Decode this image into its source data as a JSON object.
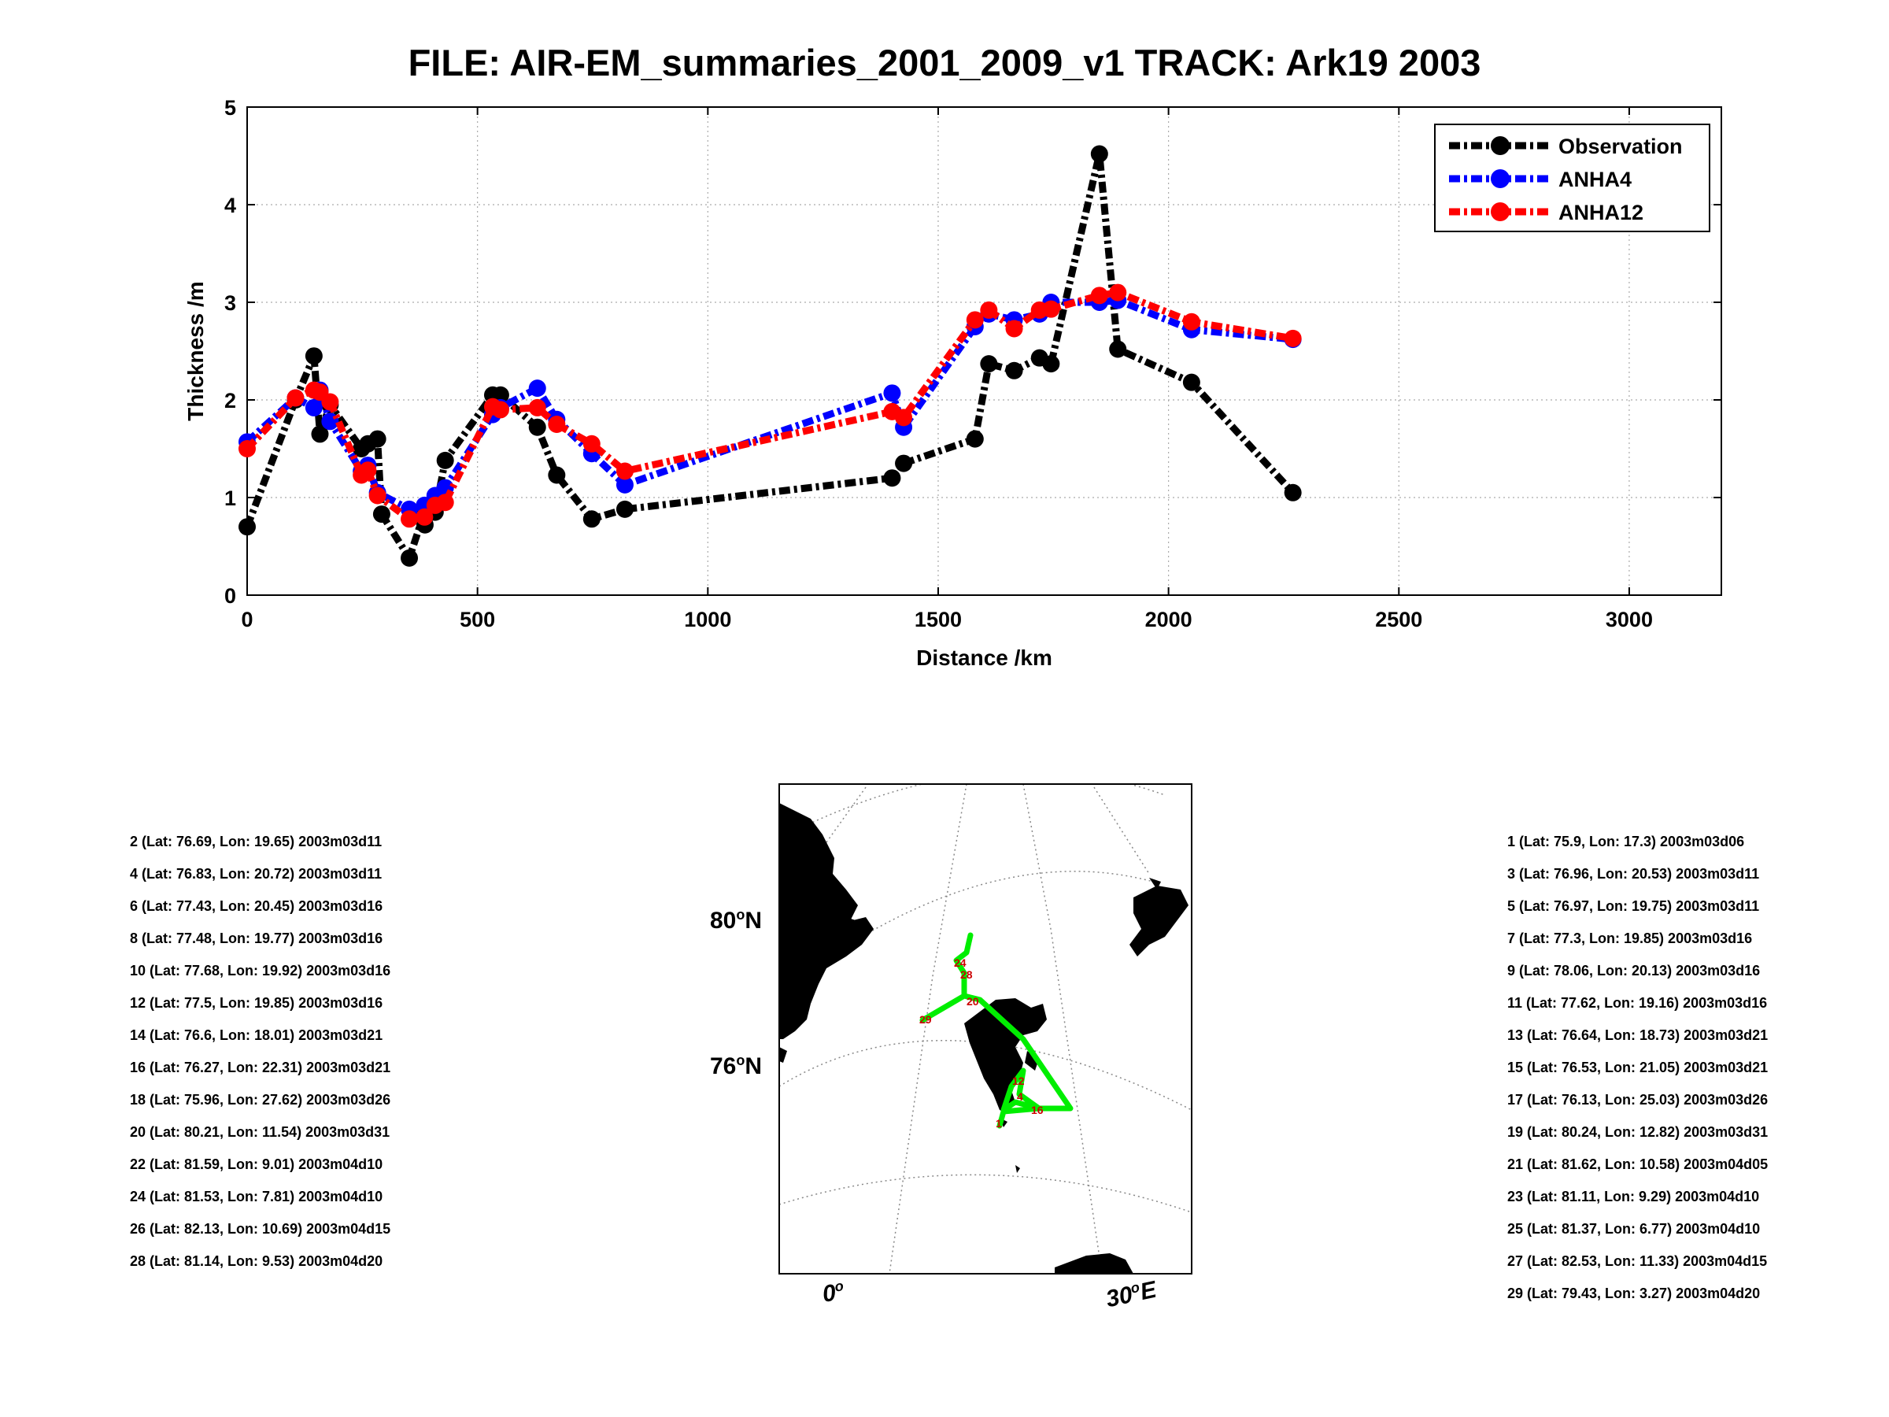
{
  "title": "FILE: AIR-EM_summaries_2001_2009_v1 TRACK: Ark19 2003",
  "chart_data": {
    "type": "line",
    "xlabel": "Distance /km",
    "ylabel": "Thickness /m",
    "xlim": [
      0,
      3200
    ],
    "ylim": [
      0,
      5
    ],
    "xticks": [
      "0",
      "500",
      "1000",
      "1500",
      "2000",
      "2500",
      "3000"
    ],
    "yticks": [
      "0",
      "1",
      "2",
      "3",
      "4",
      "5"
    ],
    "grid": true,
    "legend_position": "top-right",
    "series": [
      {
        "name": "Observation",
        "color": "#000000",
        "points": [
          [
            0,
            0.7
          ],
          [
            105,
            2.0
          ],
          [
            145,
            2.45
          ],
          [
            158,
            1.65
          ],
          [
            180,
            1.95
          ],
          [
            248,
            1.5
          ],
          [
            262,
            1.55
          ],
          [
            283,
            1.6
          ],
          [
            292,
            0.83
          ],
          [
            352,
            0.38
          ],
          [
            385,
            0.85
          ],
          [
            386,
            0.72
          ],
          [
            408,
            0.85
          ],
          [
            430,
            1.38
          ],
          [
            533,
            2.05
          ],
          [
            550,
            2.05
          ],
          [
            630,
            1.72
          ],
          [
            672,
            1.23
          ],
          [
            748,
            0.78
          ],
          [
            820,
            0.88
          ],
          [
            1400,
            1.2
          ],
          [
            1425,
            1.35
          ],
          [
            1580,
            1.6
          ],
          [
            1610,
            2.37
          ],
          [
            1665,
            2.3
          ],
          [
            1720,
            2.43
          ],
          [
            1745,
            2.37
          ],
          [
            1850,
            4.52
          ],
          [
            1890,
            2.52
          ],
          [
            2050,
            2.18
          ],
          [
            2270,
            1.05
          ]
        ]
      },
      {
        "name": "ANHA4",
        "color": "#0000ff",
        "points": [
          [
            0,
            1.57
          ],
          [
            105,
            2.02
          ],
          [
            145,
            1.92
          ],
          [
            158,
            2.1
          ],
          [
            180,
            1.78
          ],
          [
            248,
            1.27
          ],
          [
            262,
            1.33
          ],
          [
            283,
            1.05
          ],
          [
            352,
            0.88
          ],
          [
            385,
            0.92
          ],
          [
            408,
            1.02
          ],
          [
            430,
            1.1
          ],
          [
            533,
            1.85
          ],
          [
            550,
            1.92
          ],
          [
            630,
            2.12
          ],
          [
            672,
            1.8
          ],
          [
            748,
            1.45
          ],
          [
            820,
            1.13
          ],
          [
            1400,
            2.07
          ],
          [
            1425,
            1.72
          ],
          [
            1580,
            2.75
          ],
          [
            1610,
            2.88
          ],
          [
            1665,
            2.82
          ],
          [
            1720,
            2.88
          ],
          [
            1745,
            3.0
          ],
          [
            1850,
            3.0
          ],
          [
            1890,
            3.02
          ],
          [
            2050,
            2.72
          ],
          [
            2270,
            2.62
          ]
        ]
      },
      {
        "name": "ANHA12",
        "color": "#ff0000",
        "points": [
          [
            0,
            1.5
          ],
          [
            105,
            2.02
          ],
          [
            145,
            2.1
          ],
          [
            158,
            2.08
          ],
          [
            180,
            1.98
          ],
          [
            248,
            1.23
          ],
          [
            262,
            1.28
          ],
          [
            283,
            1.02
          ],
          [
            352,
            0.78
          ],
          [
            385,
            0.8
          ],
          [
            408,
            0.92
          ],
          [
            430,
            0.95
          ],
          [
            533,
            1.93
          ],
          [
            550,
            1.9
          ],
          [
            630,
            1.92
          ],
          [
            672,
            1.75
          ],
          [
            748,
            1.55
          ],
          [
            820,
            1.27
          ],
          [
            1400,
            1.88
          ],
          [
            1425,
            1.82
          ],
          [
            1580,
            2.82
          ],
          [
            1610,
            2.92
          ],
          [
            1665,
            2.73
          ],
          [
            1720,
            2.92
          ],
          [
            1745,
            2.93
          ],
          [
            1850,
            3.07
          ],
          [
            1890,
            3.1
          ],
          [
            2050,
            2.8
          ],
          [
            2270,
            2.63
          ]
        ]
      }
    ]
  },
  "left_info": [
    "2 (Lat: 76.69, Lon: 19.65) 2003m03d11",
    "4 (Lat: 76.83, Lon: 20.72) 2003m03d11",
    "6 (Lat: 77.43, Lon: 20.45) 2003m03d16",
    "8 (Lat: 77.48, Lon: 19.77) 2003m03d16",
    "10 (Lat: 77.68, Lon: 19.92) 2003m03d16",
    "12 (Lat: 77.5, Lon: 19.85) 2003m03d16",
    "14 (Lat: 76.6, Lon: 18.01) 2003m03d21",
    "16 (Lat: 76.27, Lon: 22.31) 2003m03d21",
    "18 (Lat: 75.96, Lon: 27.62) 2003m03d26",
    "20 (Lat: 80.21, Lon: 11.54) 2003m03d31",
    "22 (Lat: 81.59, Lon: 9.01) 2003m04d10",
    "24 (Lat: 81.53, Lon: 7.81) 2003m04d10",
    "26 (Lat: 82.13, Lon: 10.69) 2003m04d15",
    "28 (Lat: 81.14, Lon: 9.53) 2003m04d20"
  ],
  "right_info": [
    "1 (Lat: 75.9, Lon: 17.3) 2003m03d06",
    "3 (Lat: 76.96, Lon: 20.53) 2003m03d11",
    "5 (Lat: 76.97, Lon: 19.75) 2003m03d11",
    "7 (Lat: 77.3, Lon: 19.85) 2003m03d16",
    "9 (Lat: 78.06, Lon: 20.13) 2003m03d16",
    "11 (Lat: 77.62, Lon: 19.16) 2003m03d16",
    "13 (Lat: 76.64, Lon: 18.73) 2003m03d21",
    "15 (Lat: 76.53, Lon: 21.05) 2003m03d21",
    "17 (Lat: 76.13, Lon: 25.03) 2003m03d26",
    "19 (Lat: 80.24, Lon: 12.82) 2003m03d31",
    "21 (Lat: 81.62, Lon: 10.58) 2003m04d05",
    "23 (Lat: 81.11, Lon: 9.29) 2003m04d10",
    "25 (Lat: 81.37, Lon: 6.77) 2003m04d10",
    "27 (Lat: 82.53, Lon: 11.33) 2003m04d15",
    "29 (Lat: 79.43, Lon: 3.27) 2003m04d20"
  ],
  "map": {
    "lat_labels": [
      {
        "deg": "80",
        "unit": "N"
      },
      {
        "deg": "76",
        "unit": "N"
      }
    ],
    "lon_labels": [
      {
        "deg": "0",
        "unit": ""
      },
      {
        "deg": "30",
        "unit": "E"
      }
    ],
    "track_color": "#00ee00",
    "point_label_color": "#cc0000",
    "point_labels": [
      "24",
      "28",
      "20",
      "29",
      "12",
      "4",
      "16",
      "1"
    ]
  }
}
